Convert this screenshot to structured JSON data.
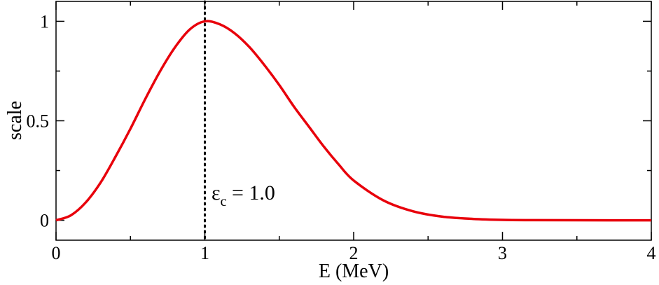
{
  "chart_data": {
    "type": "line",
    "xlabel": "E (MeV)",
    "ylabel": "scale",
    "xlim": [
      0,
      4
    ],
    "ylim": [
      -0.1,
      1.1
    ],
    "x_ticks": [
      0,
      1,
      2,
      3,
      4
    ],
    "x_tick_labels": [
      "0",
      "1",
      "2",
      "3",
      "4"
    ],
    "y_ticks": [
      0,
      0.5,
      1
    ],
    "y_tick_labels": [
      "0",
      "0.5",
      "1"
    ],
    "grid": false,
    "series": [
      {
        "color": "#e8000b",
        "x": [
          0,
          0.1,
          0.2,
          0.3,
          0.4,
          0.5,
          0.6,
          0.7,
          0.8,
          0.9,
          1.0,
          1.1,
          1.2,
          1.3,
          1.4,
          1.5,
          1.6,
          1.7,
          1.8,
          1.9,
          2.0,
          2.2,
          2.4,
          2.6,
          2.8,
          3.0,
          3.2,
          3.5,
          4.0
        ],
        "y": [
          0,
          0.025,
          0.09,
          0.19,
          0.32,
          0.46,
          0.61,
          0.75,
          0.87,
          0.96,
          1.0,
          0.985,
          0.94,
          0.87,
          0.78,
          0.68,
          0.57,
          0.47,
          0.37,
          0.28,
          0.2,
          0.1,
          0.045,
          0.018,
          0.007,
          0.002,
          0.0007,
          0.0001,
          0
        ]
      }
    ],
    "marker_line": {
      "x": 1.0,
      "style": "dotted",
      "color": "#000000"
    },
    "annotation": {
      "symbol": "ε",
      "subscript": "c",
      "rest": " = 1.0"
    }
  }
}
